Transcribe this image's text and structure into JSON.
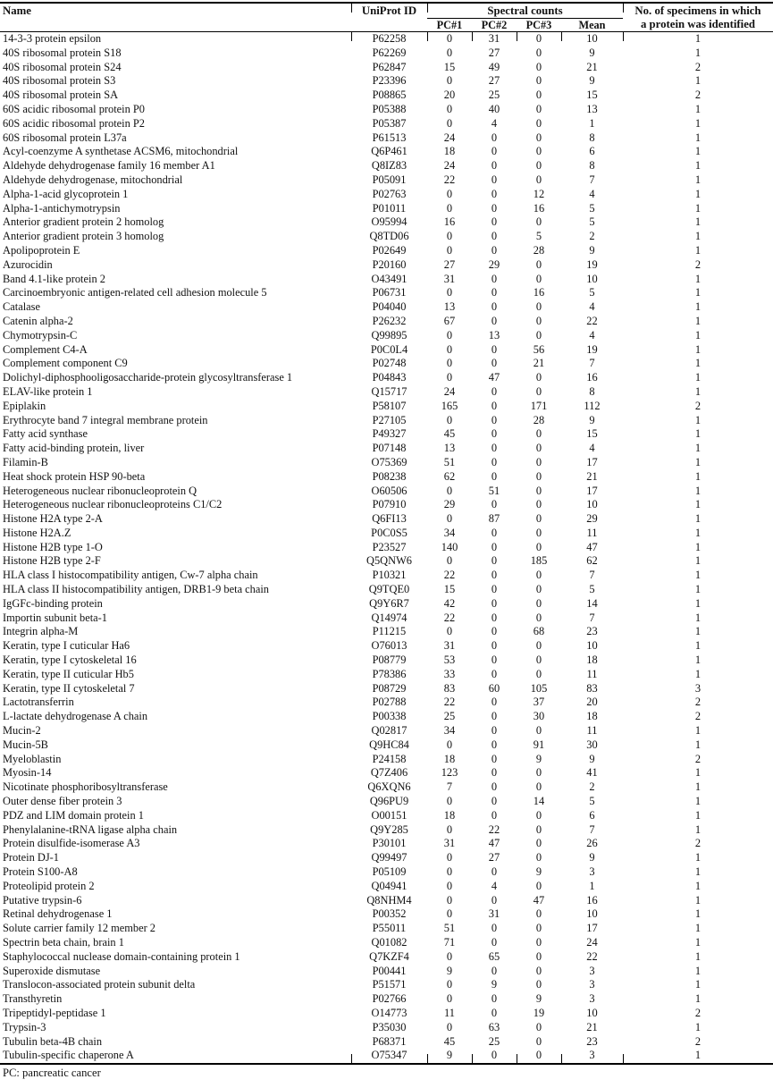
{
  "table": {
    "columns": {
      "name": "Name",
      "uniprot": "UniProt ID",
      "spectral_group": "Spectral counts",
      "pc1": "PC#1",
      "pc2": "PC#2",
      "pc3": "PC#3",
      "mean": "Mean",
      "specimens_line1": "No. of specimens in which",
      "specimens_line2": "a protein was identified"
    },
    "row_keys": [
      "name",
      "uniprot",
      "pc1",
      "pc2",
      "pc3",
      "mean",
      "specimens"
    ],
    "rows": [
      [
        "14-3-3 protein epsilon",
        "P62258",
        0,
        31,
        0,
        10,
        1
      ],
      [
        "40S ribosomal protein S18",
        "P62269",
        0,
        27,
        0,
        9,
        1
      ],
      [
        "40S ribosomal protein S24",
        "P62847",
        15,
        49,
        0,
        21,
        2
      ],
      [
        "40S ribosomal protein S3",
        "P23396",
        0,
        27,
        0,
        9,
        1
      ],
      [
        "40S ribosomal protein SA",
        "P08865",
        20,
        25,
        0,
        15,
        2
      ],
      [
        "60S acidic ribosomal protein P0",
        "P05388",
        0,
        40,
        0,
        13,
        1
      ],
      [
        "60S acidic ribosomal protein P2",
        "P05387",
        0,
        4,
        0,
        1,
        1
      ],
      [
        "60S ribosomal protein L37a",
        "P61513",
        24,
        0,
        0,
        8,
        1
      ],
      [
        "Acyl-coenzyme A synthetase ACSM6, mitochondrial",
        "Q6P461",
        18,
        0,
        0,
        6,
        1
      ],
      [
        "Aldehyde dehydrogenase family 16 member A1",
        "Q8IZ83",
        24,
        0,
        0,
        8,
        1
      ],
      [
        "Aldehyde dehydrogenase, mitochondrial",
        "P05091",
        22,
        0,
        0,
        7,
        1
      ],
      [
        "Alpha-1-acid glycoprotein 1",
        "P02763",
        0,
        0,
        12,
        4,
        1
      ],
      [
        "Alpha-1-antichymotrypsin",
        "P01011",
        0,
        0,
        16,
        5,
        1
      ],
      [
        "Anterior gradient protein 2 homolog",
        "O95994",
        16,
        0,
        0,
        5,
        1
      ],
      [
        "Anterior gradient protein 3 homolog",
        "Q8TD06",
        0,
        0,
        5,
        2,
        1
      ],
      [
        "Apolipoprotein E",
        "P02649",
        0,
        0,
        28,
        9,
        1
      ],
      [
        "Azurocidin",
        "P20160",
        27,
        29,
        0,
        19,
        2
      ],
      [
        "Band 4.1-like protein 2",
        "O43491",
        31,
        0,
        0,
        10,
        1
      ],
      [
        "Carcinoembryonic antigen-related cell adhesion molecule 5",
        "P06731",
        0,
        0,
        16,
        5,
        1
      ],
      [
        "Catalase",
        "P04040",
        13,
        0,
        0,
        4,
        1
      ],
      [
        "Catenin alpha-2",
        "P26232",
        67,
        0,
        0,
        22,
        1
      ],
      [
        "Chymotrypsin-C",
        "Q99895",
        0,
        13,
        0,
        4,
        1
      ],
      [
        "Complement C4-A",
        "P0C0L4",
        0,
        0,
        56,
        19,
        1
      ],
      [
        "Complement component C9",
        "P02748",
        0,
        0,
        21,
        7,
        1
      ],
      [
        "Dolichyl-diphosphooligosaccharide-protein glycosyltransferase 1",
        "P04843",
        0,
        47,
        0,
        16,
        1
      ],
      [
        "ELAV-like protein 1",
        "Q15717",
        24,
        0,
        0,
        8,
        1
      ],
      [
        "Epiplakin",
        "P58107",
        165,
        0,
        171,
        112,
        2
      ],
      [
        "Erythrocyte band 7 integral membrane protein",
        "P27105",
        0,
        0,
        28,
        9,
        1
      ],
      [
        "Fatty acid synthase",
        "P49327",
        45,
        0,
        0,
        15,
        1
      ],
      [
        "Fatty acid-binding protein, liver",
        "P07148",
        13,
        0,
        0,
        4,
        1
      ],
      [
        "Filamin-B",
        "O75369",
        51,
        0,
        0,
        17,
        1
      ],
      [
        "Heat shock protein HSP 90-beta",
        "P08238",
        62,
        0,
        0,
        21,
        1
      ],
      [
        "Heterogeneous nuclear ribonucleoprotein Q",
        "O60506",
        0,
        51,
        0,
        17,
        1
      ],
      [
        "Heterogeneous nuclear ribonucleoproteins C1/C2",
        "P07910",
        29,
        0,
        0,
        10,
        1
      ],
      [
        "Histone H2A type 2-A",
        "Q6FI13",
        0,
        87,
        0,
        29,
        1
      ],
      [
        "Histone H2A.Z",
        "P0C0S5",
        34,
        0,
        0,
        11,
        1
      ],
      [
        "Histone H2B type 1-O",
        "P23527",
        140,
        0,
        0,
        47,
        1
      ],
      [
        "Histone H2B type 2-F",
        "Q5QNW6",
        0,
        0,
        185,
        62,
        1
      ],
      [
        "HLA class I histocompatibility antigen, Cw-7 alpha chain",
        "P10321",
        22,
        0,
        0,
        7,
        1
      ],
      [
        "HLA class II histocompatibility antigen, DRB1-9 beta chain",
        "Q9TQE0",
        15,
        0,
        0,
        5,
        1
      ],
      [
        "IgGFc-binding protein",
        "Q9Y6R7",
        42,
        0,
        0,
        14,
        1
      ],
      [
        "Importin subunit beta-1",
        "Q14974",
        22,
        0,
        0,
        7,
        1
      ],
      [
        "Integrin alpha-M",
        "P11215",
        0,
        0,
        68,
        23,
        1
      ],
      [
        "Keratin, type I cuticular Ha6",
        "O76013",
        31,
        0,
        0,
        10,
        1
      ],
      [
        "Keratin, type I cytoskeletal 16",
        "P08779",
        53,
        0,
        0,
        18,
        1
      ],
      [
        "Keratin, type II cuticular Hb5",
        "P78386",
        33,
        0,
        0,
        11,
        1
      ],
      [
        "Keratin, type II cytoskeletal 7",
        "P08729",
        83,
        60,
        105,
        83,
        3
      ],
      [
        "Lactotransferrin",
        "P02788",
        22,
        0,
        37,
        20,
        2
      ],
      [
        "L-lactate dehydrogenase A chain",
        "P00338",
        25,
        0,
        30,
        18,
        2
      ],
      [
        "Mucin-2",
        "Q02817",
        34,
        0,
        0,
        11,
        1
      ],
      [
        "Mucin-5B",
        "Q9HC84",
        0,
        0,
        91,
        30,
        1
      ],
      [
        "Myeloblastin",
        "P24158",
        18,
        0,
        9,
        9,
        2
      ],
      [
        "Myosin-14",
        "Q7Z406",
        123,
        0,
        0,
        41,
        1
      ],
      [
        "Nicotinate phosphoribosyltransferase",
        "Q6XQN6",
        7,
        0,
        0,
        2,
        1
      ],
      [
        "Outer dense fiber protein 3",
        "Q96PU9",
        0,
        0,
        14,
        5,
        1
      ],
      [
        "PDZ and LIM domain protein 1",
        "O00151",
        18,
        0,
        0,
        6,
        1
      ],
      [
        "Phenylalanine-tRNA ligase alpha chain",
        "Q9Y285",
        0,
        22,
        0,
        7,
        1
      ],
      [
        "Protein disulfide-isomerase A3",
        "P30101",
        31,
        47,
        0,
        26,
        2
      ],
      [
        "Protein DJ-1",
        "Q99497",
        0,
        27,
        0,
        9,
        1
      ],
      [
        "Protein S100-A8",
        "P05109",
        0,
        0,
        9,
        3,
        1
      ],
      [
        "Proteolipid protein 2",
        "Q04941",
        0,
        4,
        0,
        1,
        1
      ],
      [
        "Putative trypsin-6",
        "Q8NHM4",
        0,
        0,
        47,
        16,
        1
      ],
      [
        "Retinal dehydrogenase 1",
        "P00352",
        0,
        31,
        0,
        10,
        1
      ],
      [
        "Solute carrier family 12 member 2",
        "P55011",
        51,
        0,
        0,
        17,
        1
      ],
      [
        "Spectrin beta chain, brain 1",
        "Q01082",
        71,
        0,
        0,
        24,
        1
      ],
      [
        "Staphylococcal nuclease domain-containing protein 1",
        "Q7KZF4",
        0,
        65,
        0,
        22,
        1
      ],
      [
        "Superoxide dismutase",
        "P00441",
        9,
        0,
        0,
        3,
        1
      ],
      [
        "Translocon-associated protein subunit delta",
        "P51571",
        0,
        9,
        0,
        3,
        1
      ],
      [
        "Transthyretin",
        "P02766",
        0,
        0,
        9,
        3,
        1
      ],
      [
        "Tripeptidyl-peptidase 1",
        "O14773",
        11,
        0,
        19,
        10,
        2
      ],
      [
        "Trypsin-3",
        "P35030",
        0,
        63,
        0,
        21,
        1
      ],
      [
        "Tubulin beta-4B chain",
        "P68371",
        45,
        25,
        0,
        23,
        2
      ],
      [
        "Tubulin-specific chaperone A",
        "O75347",
        9,
        0,
        0,
        3,
        1
      ]
    ]
  },
  "footer": {
    "note": "PC: pancreatic cancer"
  },
  "colors": {
    "text": "#121212",
    "rule": "#000000",
    "background": "#ffffff"
  }
}
